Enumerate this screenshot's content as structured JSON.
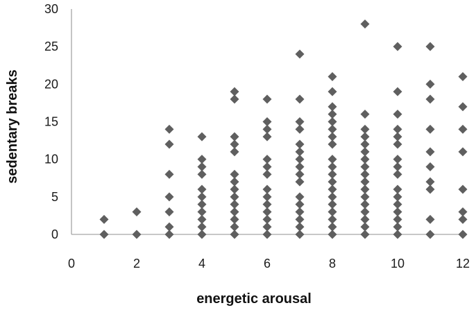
{
  "chart_data": {
    "type": "scatter",
    "title": "",
    "xlabel": "energetic arousal",
    "ylabel": "sedentary breaks",
    "xlim": [
      0,
      12
    ],
    "ylim": [
      0,
      30
    ],
    "x_ticks": [
      0,
      2,
      4,
      6,
      8,
      10,
      12
    ],
    "y_ticks": [
      0,
      5,
      10,
      15,
      20,
      25,
      30
    ],
    "grid": false,
    "legend": "none",
    "marker": "diamond",
    "marker_color": "#5f5f5f",
    "points": [
      {
        "x": 1,
        "ys": [
          0,
          2
        ]
      },
      {
        "x": 2,
        "ys": [
          0,
          3
        ]
      },
      {
        "x": 3,
        "ys": [
          0,
          1,
          3,
          5,
          8,
          12,
          14
        ]
      },
      {
        "x": 4,
        "ys": [
          0,
          1,
          2,
          3,
          4,
          5,
          6,
          8,
          9,
          10,
          13
        ]
      },
      {
        "x": 5,
        "ys": [
          0,
          1,
          2,
          3,
          4,
          5,
          6,
          7,
          8,
          11,
          12,
          13,
          18,
          19
        ]
      },
      {
        "x": 6,
        "ys": [
          0,
          1,
          2,
          3,
          4,
          5,
          6,
          8,
          9,
          10,
          13,
          14,
          15,
          18
        ]
      },
      {
        "x": 7,
        "ys": [
          0,
          1,
          2,
          3,
          4,
          5,
          7,
          8,
          9,
          10,
          11,
          12,
          14,
          15,
          18,
          24
        ]
      },
      {
        "x": 8,
        "ys": [
          0,
          1,
          2,
          3,
          4,
          5,
          6,
          7,
          8,
          9,
          10,
          12,
          13,
          14,
          15,
          16,
          17,
          19,
          21
        ]
      },
      {
        "x": 9,
        "ys": [
          0,
          1,
          2,
          3,
          4,
          5,
          6,
          7,
          8,
          9,
          10,
          11,
          12,
          13,
          14,
          16,
          28
        ]
      },
      {
        "x": 10,
        "ys": [
          0,
          1,
          2,
          3,
          4,
          5,
          6,
          8,
          9,
          10,
          12,
          13,
          14,
          16,
          19,
          25
        ]
      },
      {
        "x": 11,
        "ys": [
          0,
          2,
          6,
          7,
          9,
          11,
          14,
          18,
          20,
          25
        ]
      },
      {
        "x": 12,
        "ys": [
          0,
          2,
          3,
          6,
          11,
          14,
          17,
          21
        ]
      }
    ]
  }
}
